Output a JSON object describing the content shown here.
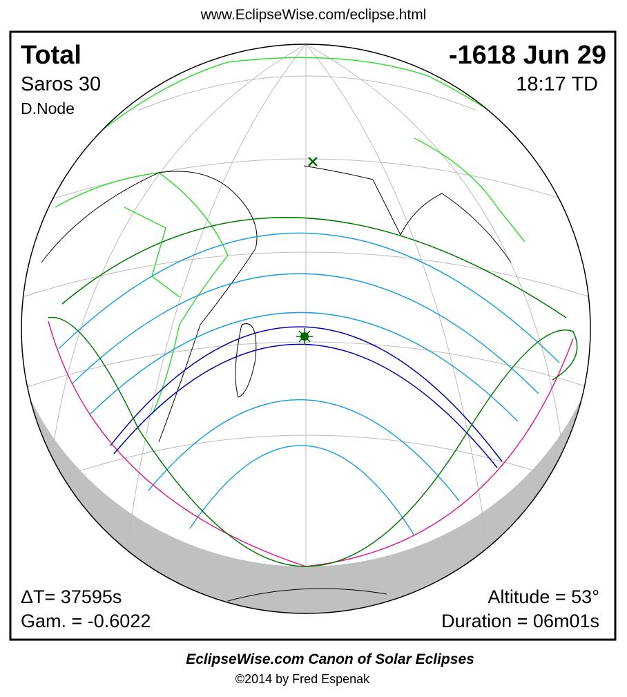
{
  "header": {
    "url": "www.EclipseWise.com/eclipse.html"
  },
  "panel": {
    "eclipse_type": "Total",
    "saros": "Saros  30",
    "node": "D.Node",
    "date": "-1618 Jun 29",
    "time": "18:17 TD",
    "delta_t": "ΔT=  37595s",
    "gamma": "Gam. = -0.6022",
    "altitude": "Altitude = 53°",
    "duration": "Duration = 06m01s"
  },
  "footer": {
    "title": "EclipseWise.com Canon of Solar Eclipses",
    "copyright": "©2014 by Fred Espenak"
  }
}
